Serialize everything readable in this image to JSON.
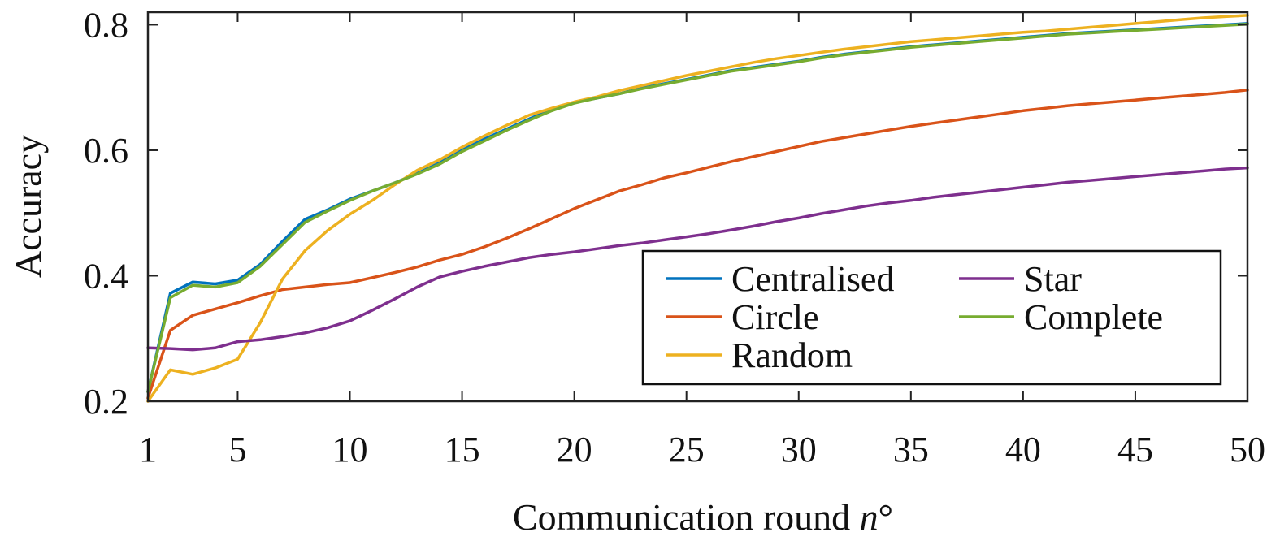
{
  "chart_data": {
    "type": "line",
    "title": "",
    "xlabel": "Communication round",
    "xlabel_var": "n",
    "xlabel_suffix": "°",
    "ylabel": "Accuracy",
    "xlim": [
      1,
      50
    ],
    "ylim": [
      0.2,
      0.82
    ],
    "xticks": [
      1,
      5,
      10,
      15,
      20,
      25,
      30,
      35,
      40,
      45,
      50
    ],
    "yticks": [
      0.2,
      0.4,
      0.6,
      0.8
    ],
    "ytick_labels": [
      "0.2",
      "0.4",
      "0.6",
      "0.8"
    ],
    "grid": false,
    "legend_position": "lower-right",
    "x": [
      1,
      2,
      3,
      4,
      5,
      6,
      7,
      8,
      9,
      10,
      11,
      12,
      13,
      14,
      15,
      16,
      17,
      18,
      19,
      20,
      21,
      22,
      23,
      24,
      25,
      26,
      27,
      28,
      29,
      30,
      31,
      32,
      33,
      34,
      35,
      36,
      37,
      38,
      39,
      40,
      41,
      42,
      43,
      44,
      45,
      46,
      47,
      48,
      49,
      50
    ],
    "series": [
      {
        "name": "Centralised",
        "color": "#0072BD",
        "values": [
          0.215,
          0.372,
          0.39,
          0.387,
          0.393,
          0.418,
          0.455,
          0.49,
          0.505,
          0.522,
          0.535,
          0.548,
          0.563,
          0.58,
          0.6,
          0.618,
          0.634,
          0.65,
          0.665,
          0.676,
          0.683,
          0.69,
          0.699,
          0.706,
          0.713,
          0.72,
          0.727,
          0.732,
          0.737,
          0.742,
          0.748,
          0.753,
          0.757,
          0.761,
          0.765,
          0.768,
          0.771,
          0.774,
          0.777,
          0.78,
          0.783,
          0.786,
          0.788,
          0.79,
          0.792,
          0.794,
          0.796,
          0.798,
          0.8,
          0.802
        ]
      },
      {
        "name": "Circle",
        "color": "#D95319",
        "values": [
          0.205,
          0.313,
          0.337,
          0.347,
          0.357,
          0.368,
          0.378,
          0.382,
          0.386,
          0.389,
          0.397,
          0.405,
          0.414,
          0.425,
          0.434,
          0.446,
          0.46,
          0.475,
          0.491,
          0.507,
          0.521,
          0.535,
          0.545,
          0.556,
          0.564,
          0.573,
          0.582,
          0.59,
          0.598,
          0.606,
          0.614,
          0.62,
          0.626,
          0.632,
          0.638,
          0.643,
          0.648,
          0.653,
          0.658,
          0.663,
          0.667,
          0.671,
          0.674,
          0.677,
          0.68,
          0.683,
          0.686,
          0.689,
          0.692,
          0.696
        ]
      },
      {
        "name": "Random",
        "color": "#EDB120",
        "values": [
          0.2,
          0.25,
          0.243,
          0.253,
          0.267,
          0.325,
          0.395,
          0.44,
          0.472,
          0.498,
          0.52,
          0.545,
          0.568,
          0.585,
          0.605,
          0.623,
          0.64,
          0.656,
          0.667,
          0.677,
          0.685,
          0.695,
          0.703,
          0.711,
          0.719,
          0.726,
          0.733,
          0.74,
          0.746,
          0.751,
          0.756,
          0.761,
          0.765,
          0.769,
          0.773,
          0.776,
          0.779,
          0.782,
          0.785,
          0.788,
          0.79,
          0.793,
          0.796,
          0.799,
          0.802,
          0.805,
          0.808,
          0.811,
          0.813,
          0.815
        ]
      },
      {
        "name": "Star",
        "color": "#7E2F8E",
        "values": [
          0.285,
          0.284,
          0.282,
          0.285,
          0.295,
          0.298,
          0.303,
          0.309,
          0.317,
          0.328,
          0.345,
          0.363,
          0.382,
          0.398,
          0.407,
          0.415,
          0.422,
          0.429,
          0.434,
          0.438,
          0.443,
          0.448,
          0.452,
          0.457,
          0.462,
          0.467,
          0.473,
          0.479,
          0.486,
          0.492,
          0.499,
          0.505,
          0.511,
          0.516,
          0.52,
          0.525,
          0.529,
          0.533,
          0.537,
          0.541,
          0.545,
          0.549,
          0.552,
          0.555,
          0.558,
          0.561,
          0.564,
          0.567,
          0.57,
          0.572
        ]
      },
      {
        "name": "Complete",
        "color": "#77AC30",
        "values": [
          0.215,
          0.365,
          0.385,
          0.382,
          0.389,
          0.415,
          0.45,
          0.485,
          0.503,
          0.52,
          0.535,
          0.548,
          0.562,
          0.578,
          0.598,
          0.615,
          0.632,
          0.648,
          0.663,
          0.675,
          0.683,
          0.69,
          0.698,
          0.705,
          0.712,
          0.719,
          0.726,
          0.731,
          0.736,
          0.741,
          0.747,
          0.752,
          0.756,
          0.76,
          0.764,
          0.767,
          0.77,
          0.773,
          0.776,
          0.779,
          0.782,
          0.785,
          0.787,
          0.789,
          0.791,
          0.793,
          0.795,
          0.797,
          0.799,
          0.801
        ]
      }
    ]
  }
}
